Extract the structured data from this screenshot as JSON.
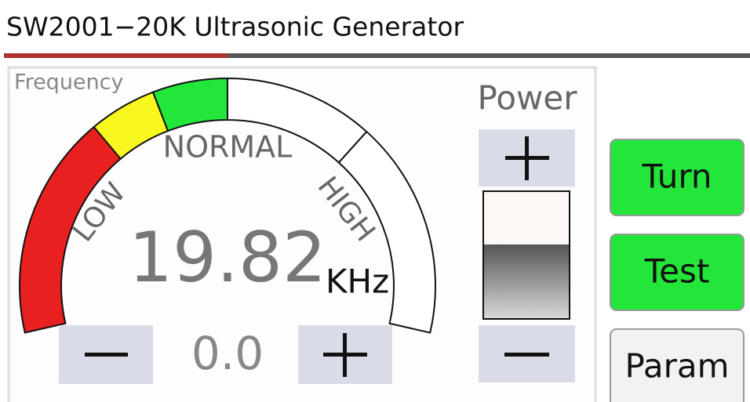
{
  "header": {
    "title": "SW2001−20K Ultrasonic Generator"
  },
  "gauge": {
    "label": "Frequency",
    "zones": {
      "low": "LOW",
      "normal": "NORMAL",
      "high": "HIGH"
    }
  },
  "reading": {
    "value": "19.82",
    "unit": "KHz"
  },
  "adjust": {
    "value": "0.0"
  },
  "power": {
    "label": "Power"
  },
  "buttons": [
    "Turn",
    "Test",
    "Param"
  ]
}
